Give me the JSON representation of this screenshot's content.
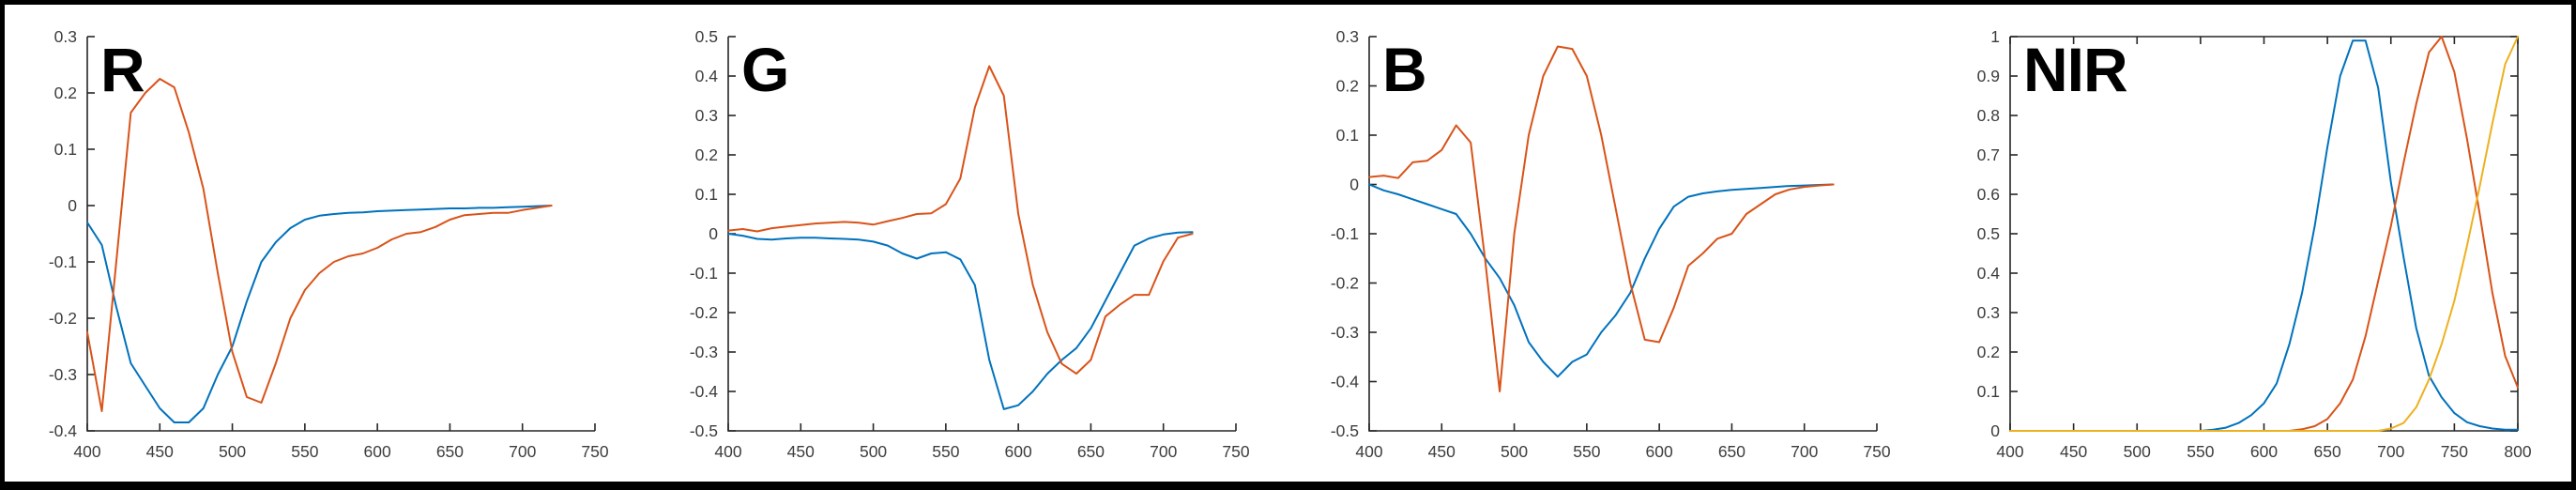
{
  "figure": {
    "background": "#ffffff",
    "frame_color": "#000000",
    "axis_color": "#262626",
    "tick_label_color": "#3d3d3d",
    "panel_labels": [
      "R",
      "G",
      "B",
      "NIR"
    ]
  },
  "chart_data": [
    {
      "type": "line",
      "title": "R",
      "xlabel": "",
      "ylabel": "",
      "xlim": [
        400,
        750
      ],
      "ylim": [
        -0.4,
        0.3
      ],
      "xticks": [
        400,
        450,
        500,
        550,
        600,
        650,
        700,
        750
      ],
      "yticks": [
        -0.4,
        -0.3,
        -0.2,
        -0.1,
        0,
        0.1,
        0.2,
        0.3
      ],
      "grid": false,
      "box": false,
      "legend": null,
      "x": [
        400,
        410,
        420,
        430,
        440,
        450,
        460,
        470,
        480,
        490,
        500,
        510,
        520,
        530,
        540,
        550,
        560,
        570,
        580,
        590,
        600,
        610,
        620,
        630,
        640,
        650,
        660,
        670,
        680,
        690,
        700,
        710,
        720
      ],
      "series": [
        {
          "name": "blue-series",
          "color": "#0072BD",
          "values": [
            -0.03,
            -0.07,
            -0.18,
            -0.28,
            -0.32,
            -0.36,
            -0.385,
            -0.385,
            -0.36,
            -0.3,
            -0.25,
            -0.17,
            -0.1,
            -0.065,
            -0.04,
            -0.025,
            -0.018,
            -0.015,
            -0.013,
            -0.012,
            -0.01,
            -0.009,
            -0.008,
            -0.007,
            -0.006,
            -0.005,
            -0.005,
            -0.004,
            -0.004,
            -0.003,
            -0.002,
            -0.001,
            0
          ]
        },
        {
          "name": "orange-series",
          "color": "#D95319",
          "values": [
            -0.225,
            -0.365,
            -0.1,
            0.165,
            0.2,
            0.225,
            0.21,
            0.13,
            0.03,
            -0.12,
            -0.26,
            -0.34,
            -0.35,
            -0.28,
            -0.2,
            -0.15,
            -0.12,
            -0.1,
            -0.09,
            -0.085,
            -0.075,
            -0.06,
            -0.05,
            -0.047,
            -0.038,
            -0.025,
            -0.017,
            -0.015,
            -0.013,
            -0.013,
            -0.008,
            -0.004,
            0
          ]
        }
      ]
    },
    {
      "type": "line",
      "title": "G",
      "xlabel": "",
      "ylabel": "",
      "xlim": [
        400,
        750
      ],
      "ylim": [
        -0.5,
        0.5
      ],
      "xticks": [
        400,
        450,
        500,
        550,
        600,
        650,
        700,
        750
      ],
      "yticks": [
        -0.5,
        -0.4,
        -0.3,
        -0.2,
        -0.1,
        0,
        0.1,
        0.2,
        0.3,
        0.4,
        0.5
      ],
      "grid": false,
      "box": false,
      "legend": null,
      "x": [
        400,
        410,
        420,
        430,
        440,
        450,
        460,
        470,
        480,
        490,
        500,
        510,
        520,
        530,
        540,
        550,
        560,
        570,
        580,
        590,
        600,
        610,
        620,
        630,
        640,
        650,
        660,
        670,
        680,
        690,
        700,
        710,
        720
      ],
      "series": [
        {
          "name": "blue-series",
          "color": "#0072BD",
          "values": [
            0,
            -0.005,
            -0.013,
            -0.015,
            -0.012,
            -0.01,
            -0.01,
            -0.012,
            -0.013,
            -0.015,
            -0.02,
            -0.03,
            -0.05,
            -0.063,
            -0.05,
            -0.047,
            -0.065,
            -0.13,
            -0.32,
            -0.445,
            -0.435,
            -0.4,
            -0.355,
            -0.32,
            -0.29,
            -0.24,
            -0.17,
            -0.1,
            -0.03,
            -0.012,
            -0.002,
            0.003,
            0.004
          ]
        },
        {
          "name": "orange-series",
          "color": "#D95319",
          "values": [
            0.008,
            0.012,
            0.006,
            0.014,
            0.018,
            0.022,
            0.026,
            0.028,
            0.03,
            0.028,
            0.023,
            0.032,
            0.04,
            0.05,
            0.052,
            0.075,
            0.14,
            0.32,
            0.425,
            0.35,
            0.05,
            -0.13,
            -0.25,
            -0.33,
            -0.355,
            -0.32,
            -0.21,
            -0.18,
            -0.155,
            -0.155,
            -0.07,
            -0.01,
            0
          ]
        }
      ]
    },
    {
      "type": "line",
      "title": "B",
      "xlabel": "",
      "ylabel": "",
      "xlim": [
        400,
        750
      ],
      "ylim": [
        -0.5,
        0.3
      ],
      "xticks": [
        400,
        450,
        500,
        550,
        600,
        650,
        700,
        750
      ],
      "yticks": [
        -0.5,
        -0.4,
        -0.3,
        -0.2,
        -0.1,
        0,
        0.1,
        0.2,
        0.3
      ],
      "grid": false,
      "box": false,
      "legend": null,
      "x": [
        400,
        410,
        420,
        430,
        440,
        450,
        460,
        470,
        480,
        490,
        500,
        510,
        520,
        530,
        540,
        550,
        560,
        570,
        580,
        590,
        600,
        610,
        620,
        630,
        640,
        650,
        660,
        670,
        680,
        690,
        700,
        710,
        720
      ],
      "series": [
        {
          "name": "blue-series",
          "color": "#0072BD",
          "values": [
            0,
            -0.012,
            -0.02,
            -0.03,
            -0.04,
            -0.05,
            -0.06,
            -0.1,
            -0.15,
            -0.19,
            -0.245,
            -0.32,
            -0.36,
            -0.39,
            -0.36,
            -0.345,
            -0.3,
            -0.265,
            -0.22,
            -0.15,
            -0.09,
            -0.045,
            -0.025,
            -0.018,
            -0.014,
            -0.011,
            -0.009,
            -0.007,
            -0.005,
            -0.003,
            -0.002,
            -0.001,
            0
          ]
        },
        {
          "name": "orange-series",
          "color": "#D95319",
          "values": [
            0.015,
            0.018,
            0.013,
            0.045,
            0.048,
            0.07,
            0.12,
            0.085,
            -0.155,
            -0.42,
            -0.1,
            0.1,
            0.22,
            0.28,
            0.275,
            0.22,
            0.1,
            -0.05,
            -0.2,
            -0.315,
            -0.32,
            -0.25,
            -0.165,
            -0.14,
            -0.11,
            -0.1,
            -0.06,
            -0.04,
            -0.02,
            -0.01,
            -0.005,
            -0.002,
            0
          ]
        }
      ]
    },
    {
      "type": "line",
      "title": "NIR",
      "xlabel": "",
      "ylabel": "",
      "xlim": [
        400,
        800
      ],
      "ylim": [
        0,
        1
      ],
      "xticks": [
        400,
        450,
        500,
        550,
        600,
        650,
        700,
        750,
        800
      ],
      "yticks": [
        0,
        0.1,
        0.2,
        0.3,
        0.4,
        0.5,
        0.6,
        0.7,
        0.8,
        0.9,
        1
      ],
      "grid": false,
      "box": true,
      "legend": null,
      "x": [
        400,
        410,
        420,
        430,
        440,
        450,
        460,
        470,
        480,
        490,
        500,
        510,
        520,
        530,
        540,
        550,
        560,
        570,
        580,
        590,
        600,
        610,
        620,
        630,
        640,
        650,
        660,
        670,
        680,
        690,
        700,
        710,
        720,
        730,
        740,
        750,
        760,
        770,
        780,
        790,
        800
      ],
      "series": [
        {
          "name": "blue-series",
          "color": "#0072BD",
          "values": [
            0,
            0,
            0,
            0,
            0,
            0,
            0,
            0,
            0,
            0,
            0,
            0,
            0,
            0,
            0,
            0,
            0.003,
            0.008,
            0.02,
            0.04,
            0.07,
            0.12,
            0.22,
            0.35,
            0.52,
            0.72,
            0.9,
            0.99,
            0.99,
            0.87,
            0.63,
            0.44,
            0.26,
            0.14,
            0.085,
            0.045,
            0.022,
            0.012,
            0.006,
            0.003,
            0.003
          ]
        },
        {
          "name": "orange-series",
          "color": "#D95319",
          "values": [
            0,
            0,
            0,
            0,
            0,
            0,
            0,
            0,
            0,
            0,
            0,
            0,
            0,
            0,
            0,
            0,
            0,
            0,
            0,
            0,
            0,
            0,
            0,
            0.004,
            0.012,
            0.03,
            0.07,
            0.13,
            0.24,
            0.38,
            0.52,
            0.68,
            0.83,
            0.96,
            1.0,
            0.91,
            0.74,
            0.55,
            0.35,
            0.19,
            0.11
          ]
        },
        {
          "name": "yellow-series",
          "color": "#EDB120",
          "values": [
            0,
            0,
            0,
            0,
            0,
            0,
            0,
            0,
            0,
            0,
            0,
            0,
            0,
            0,
            0,
            0,
            0,
            0,
            0,
            0,
            0,
            0,
            0,
            0,
            0,
            0,
            0,
            0,
            0,
            0,
            0.006,
            0.02,
            0.06,
            0.13,
            0.22,
            0.33,
            0.47,
            0.62,
            0.78,
            0.93,
            1.0
          ]
        }
      ]
    }
  ]
}
